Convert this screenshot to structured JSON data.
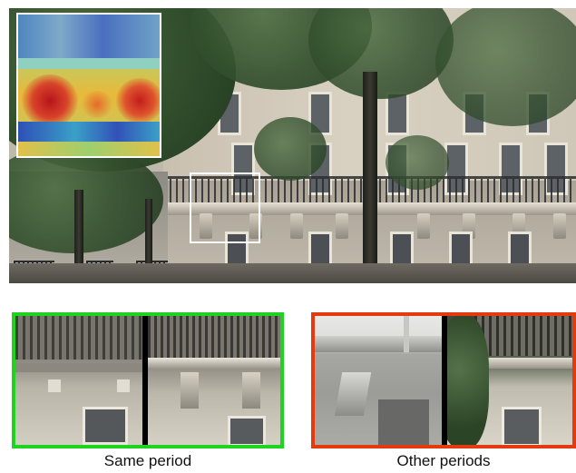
{
  "image": {
    "subject": "street-view facade with inset heat map and patch comparisons",
    "colors": {
      "same_period_border": "#1ed41e",
      "other_periods_border": "#e33a10",
      "selection_box": "#ffffff",
      "inset_border": "#ffffff"
    }
  },
  "captions": {
    "same_period": "Same period",
    "other_periods": "Other periods"
  }
}
